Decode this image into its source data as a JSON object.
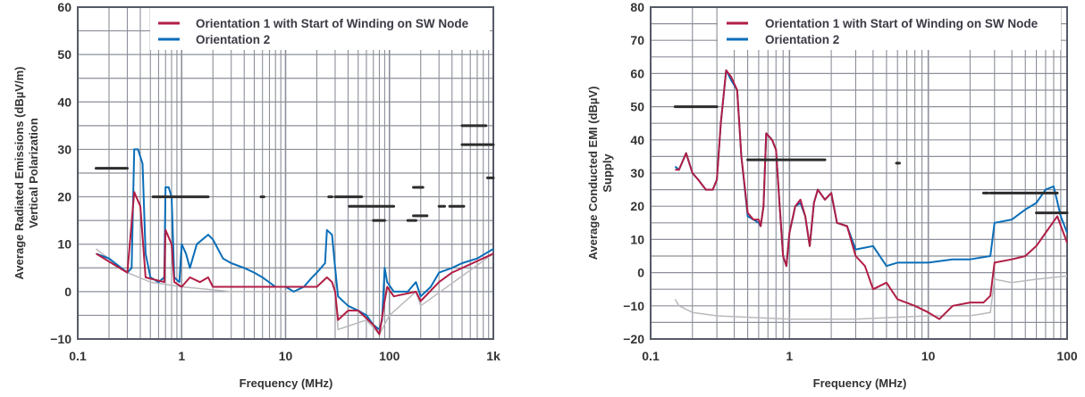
{
  "chart_data": [
    {
      "type": "line",
      "xscale": "log",
      "xlabel": "Frequency (MHz)",
      "ylabel": [
        "Average Radiated Emissions (dBµV/m)",
        "Vertical Polarization"
      ],
      "xlim": [
        0.1,
        1000
      ],
      "ylim": [
        -10,
        60
      ],
      "xticks": [
        {
          "v": 0.1,
          "label": "0.1"
        },
        {
          "v": 1,
          "label": "1"
        },
        {
          "v": 10,
          "label": "10"
        },
        {
          "v": 100,
          "label": "100"
        },
        {
          "v": 1000,
          "label": "1k"
        }
      ],
      "yticks": [
        -10,
        0,
        10,
        20,
        30,
        40,
        50,
        60
      ],
      "grid": true,
      "legend_position": "top-right",
      "colors": {
        "orientation1": "#b01e45",
        "orientation2": "#0a6eb8",
        "floor": "#b9b9bd",
        "limit": "#2d2d2d",
        "grid": "#8c8f99"
      },
      "series": [
        {
          "name": "Orientation 1 with Start of Winding on SW Node",
          "key": "orientation1",
          "x": [
            0.15,
            0.3,
            0.35,
            0.4,
            0.45,
            0.68,
            0.7,
            0.8,
            0.85,
            1.0,
            1.2,
            1.5,
            1.8,
            2,
            3,
            5,
            10,
            20,
            25,
            28,
            30,
            32,
            40,
            50,
            70,
            80,
            90,
            95,
            110,
            180,
            200,
            300,
            400,
            1000
          ],
          "y": [
            8,
            4,
            21,
            18,
            3,
            2,
            13,
            10,
            2,
            1,
            3,
            2,
            3,
            1,
            1,
            1,
            1,
            1,
            3,
            2,
            0,
            -6,
            -4,
            -4,
            -7,
            -9,
            -2,
            1,
            -1,
            0,
            -2,
            2,
            4,
            8
          ]
        },
        {
          "name": "Orientation 2",
          "key": "orientation2",
          "x": [
            0.15,
            0.2,
            0.3,
            0.33,
            0.35,
            0.38,
            0.42,
            0.45,
            0.5,
            0.6,
            0.68,
            0.7,
            0.75,
            0.8,
            0.85,
            0.95,
            1.0,
            1.1,
            1.2,
            1.4,
            1.8,
            2,
            2.5,
            3,
            4,
            5,
            6,
            8,
            10,
            12,
            15,
            18,
            20,
            24,
            25,
            28,
            30,
            32,
            40,
            50,
            60,
            70,
            80,
            85,
            90,
            95,
            110,
            150,
            180,
            200,
            250,
            300,
            400,
            500,
            700,
            1000
          ],
          "y": [
            8,
            7,
            4,
            5,
            30,
            30,
            27,
            8,
            3,
            2,
            3,
            22,
            22,
            20,
            3,
            2,
            10,
            8,
            5,
            10,
            12,
            11,
            7,
            6,
            5,
            4,
            3,
            1,
            1,
            0,
            1,
            3,
            4,
            6,
            13,
            12,
            5,
            -1,
            -3,
            -4,
            -5,
            -7,
            -8,
            -6,
            5,
            2,
            0,
            0,
            2,
            -1,
            1,
            4,
            5,
            6,
            7,
            9
          ]
        },
        {
          "key": "floor",
          "x": [
            0.15,
            0.3,
            0.5,
            1,
            3,
            10,
            30,
            32,
            60,
            80,
            100,
            180,
            200,
            1000
          ],
          "y": [
            9,
            4,
            2,
            1,
            0,
            0,
            0,
            -8,
            -6,
            -9,
            -5,
            0,
            -3,
            8
          ]
        }
      ],
      "limits": [
        {
          "x": [
            0.15,
            0.3
          ],
          "y": 26
        },
        {
          "x": [
            0.53,
            1.8
          ],
          "y": 20
        },
        {
          "x": [
            5.8,
            6.2
          ],
          "y": 20
        },
        {
          "x": [
            26,
            28
          ],
          "y": 20
        },
        {
          "x": [
            30,
            54
          ],
          "y": 20
        },
        {
          "x": [
            41,
            110
          ],
          "y": 18
        },
        {
          "x": [
            70,
            90
          ],
          "y": 15
        },
        {
          "x": [
            150,
            180
          ],
          "y": 15
        },
        {
          "x": [
            170,
            210
          ],
          "y": 22
        },
        {
          "x": [
            170,
            230
          ],
          "y": 16
        },
        {
          "x": [
            300,
            340
          ],
          "y": 18
        },
        {
          "x": [
            380,
            520
          ],
          "y": 18
        },
        {
          "x": [
            500,
            850
          ],
          "y": 35
        },
        {
          "x": [
            500,
            1000
          ],
          "y": 31
        },
        {
          "x": [
            880,
            1000
          ],
          "y": 24
        }
      ]
    },
    {
      "type": "line",
      "xscale": "log",
      "xlabel": "Frequency (MHz)",
      "ylabel": [
        "Average Conducted EMI (dBµV)",
        "Supply"
      ],
      "xlim": [
        0.1,
        100
      ],
      "ylim": [
        -20,
        80
      ],
      "xticks": [
        {
          "v": 0.1,
          "label": "0.1"
        },
        {
          "v": 1,
          "label": "1"
        },
        {
          "v": 10,
          "label": "10"
        },
        {
          "v": 100,
          "label": "100"
        }
      ],
      "yticks": [
        -20,
        -10,
        0,
        10,
        20,
        30,
        40,
        50,
        60,
        70,
        80
      ],
      "grid": true,
      "legend_position": "top-right",
      "colors": {
        "orientation1": "#b01e45",
        "orientation2": "#0a6eb8",
        "floor": "#b9b9bd",
        "limit": "#2d2d2d",
        "grid": "#8c8f99"
      },
      "series": [
        {
          "name": "Orientation 1 with Start of Winding on SW Node",
          "key": "orientation1",
          "x": [
            0.15,
            0.16,
            0.18,
            0.2,
            0.22,
            0.25,
            0.28,
            0.3,
            0.32,
            0.35,
            0.38,
            0.42,
            0.45,
            0.5,
            0.55,
            0.6,
            0.62,
            0.65,
            0.68,
            0.75,
            0.8,
            0.85,
            0.9,
            0.95,
            1.0,
            1.1,
            1.2,
            1.3,
            1.4,
            1.5,
            1.6,
            1.8,
            2,
            2.2,
            2.6,
            3,
            3.5,
            4,
            5,
            6,
            8,
            10,
            12,
            15,
            20,
            25,
            28,
            30,
            40,
            50,
            60,
            70,
            85,
            100
          ],
          "y": [
            31,
            31,
            36,
            30,
            28,
            25,
            25,
            28,
            45,
            61,
            59,
            55,
            35,
            18,
            16,
            16,
            14,
            20,
            42,
            40,
            37,
            20,
            5,
            2,
            12,
            20,
            22,
            17,
            8,
            21,
            25,
            22,
            24,
            15,
            14,
            5,
            2,
            -5,
            -3,
            -8,
            -10,
            -12,
            -14,
            -10,
            -9,
            -9,
            -7,
            3,
            4,
            5,
            8,
            12,
            17,
            9
          ]
        },
        {
          "name": "Orientation 2",
          "key": "orientation2",
          "x": [
            0.15,
            0.16,
            0.18,
            0.2,
            0.22,
            0.25,
            0.28,
            0.3,
            0.32,
            0.35,
            0.38,
            0.42,
            0.45,
            0.5,
            0.55,
            0.6,
            0.62,
            0.65,
            0.68,
            0.75,
            0.8,
            0.85,
            0.9,
            0.95,
            1.0,
            1.1,
            1.2,
            1.3,
            1.4,
            1.5,
            1.6,
            1.8,
            2,
            2.2,
            2.6,
            3,
            4,
            5,
            6,
            10,
            15,
            20,
            28,
            30,
            40,
            50,
            60,
            70,
            80,
            90,
            100
          ],
          "y": [
            32,
            31,
            36,
            30,
            28,
            25,
            25,
            28,
            45,
            61,
            58,
            55,
            35,
            17,
            16,
            15,
            14,
            20,
            42,
            40,
            37,
            20,
            5,
            2,
            12,
            20,
            21,
            17,
            8,
            21,
            25,
            22,
            24,
            15,
            14,
            7,
            8,
            2,
            3,
            3,
            4,
            4,
            5,
            15,
            16,
            19,
            21,
            25,
            26,
            17,
            12
          ]
        },
        {
          "key": "floor",
          "x": [
            0.15,
            0.16,
            0.2,
            0.3,
            1,
            3,
            10,
            20,
            28,
            30,
            40,
            60,
            100
          ],
          "y": [
            -8,
            -10,
            -12,
            -13,
            -14,
            -14,
            -13,
            -13,
            -12,
            -2,
            -3,
            -2,
            -1
          ]
        }
      ],
      "limits": [
        {
          "x": [
            0.15,
            0.3
          ],
          "y": 50
        },
        {
          "x": [
            0.5,
            1.8
          ],
          "y": 34
        },
        {
          "x": [
            5.9,
            6.2
          ],
          "y": 33
        },
        {
          "x": [
            25,
            27
          ],
          "y": 24
        },
        {
          "x": [
            28,
            85
          ],
          "y": 24
        },
        {
          "x": [
            60,
            100
          ],
          "y": 18
        }
      ]
    }
  ]
}
